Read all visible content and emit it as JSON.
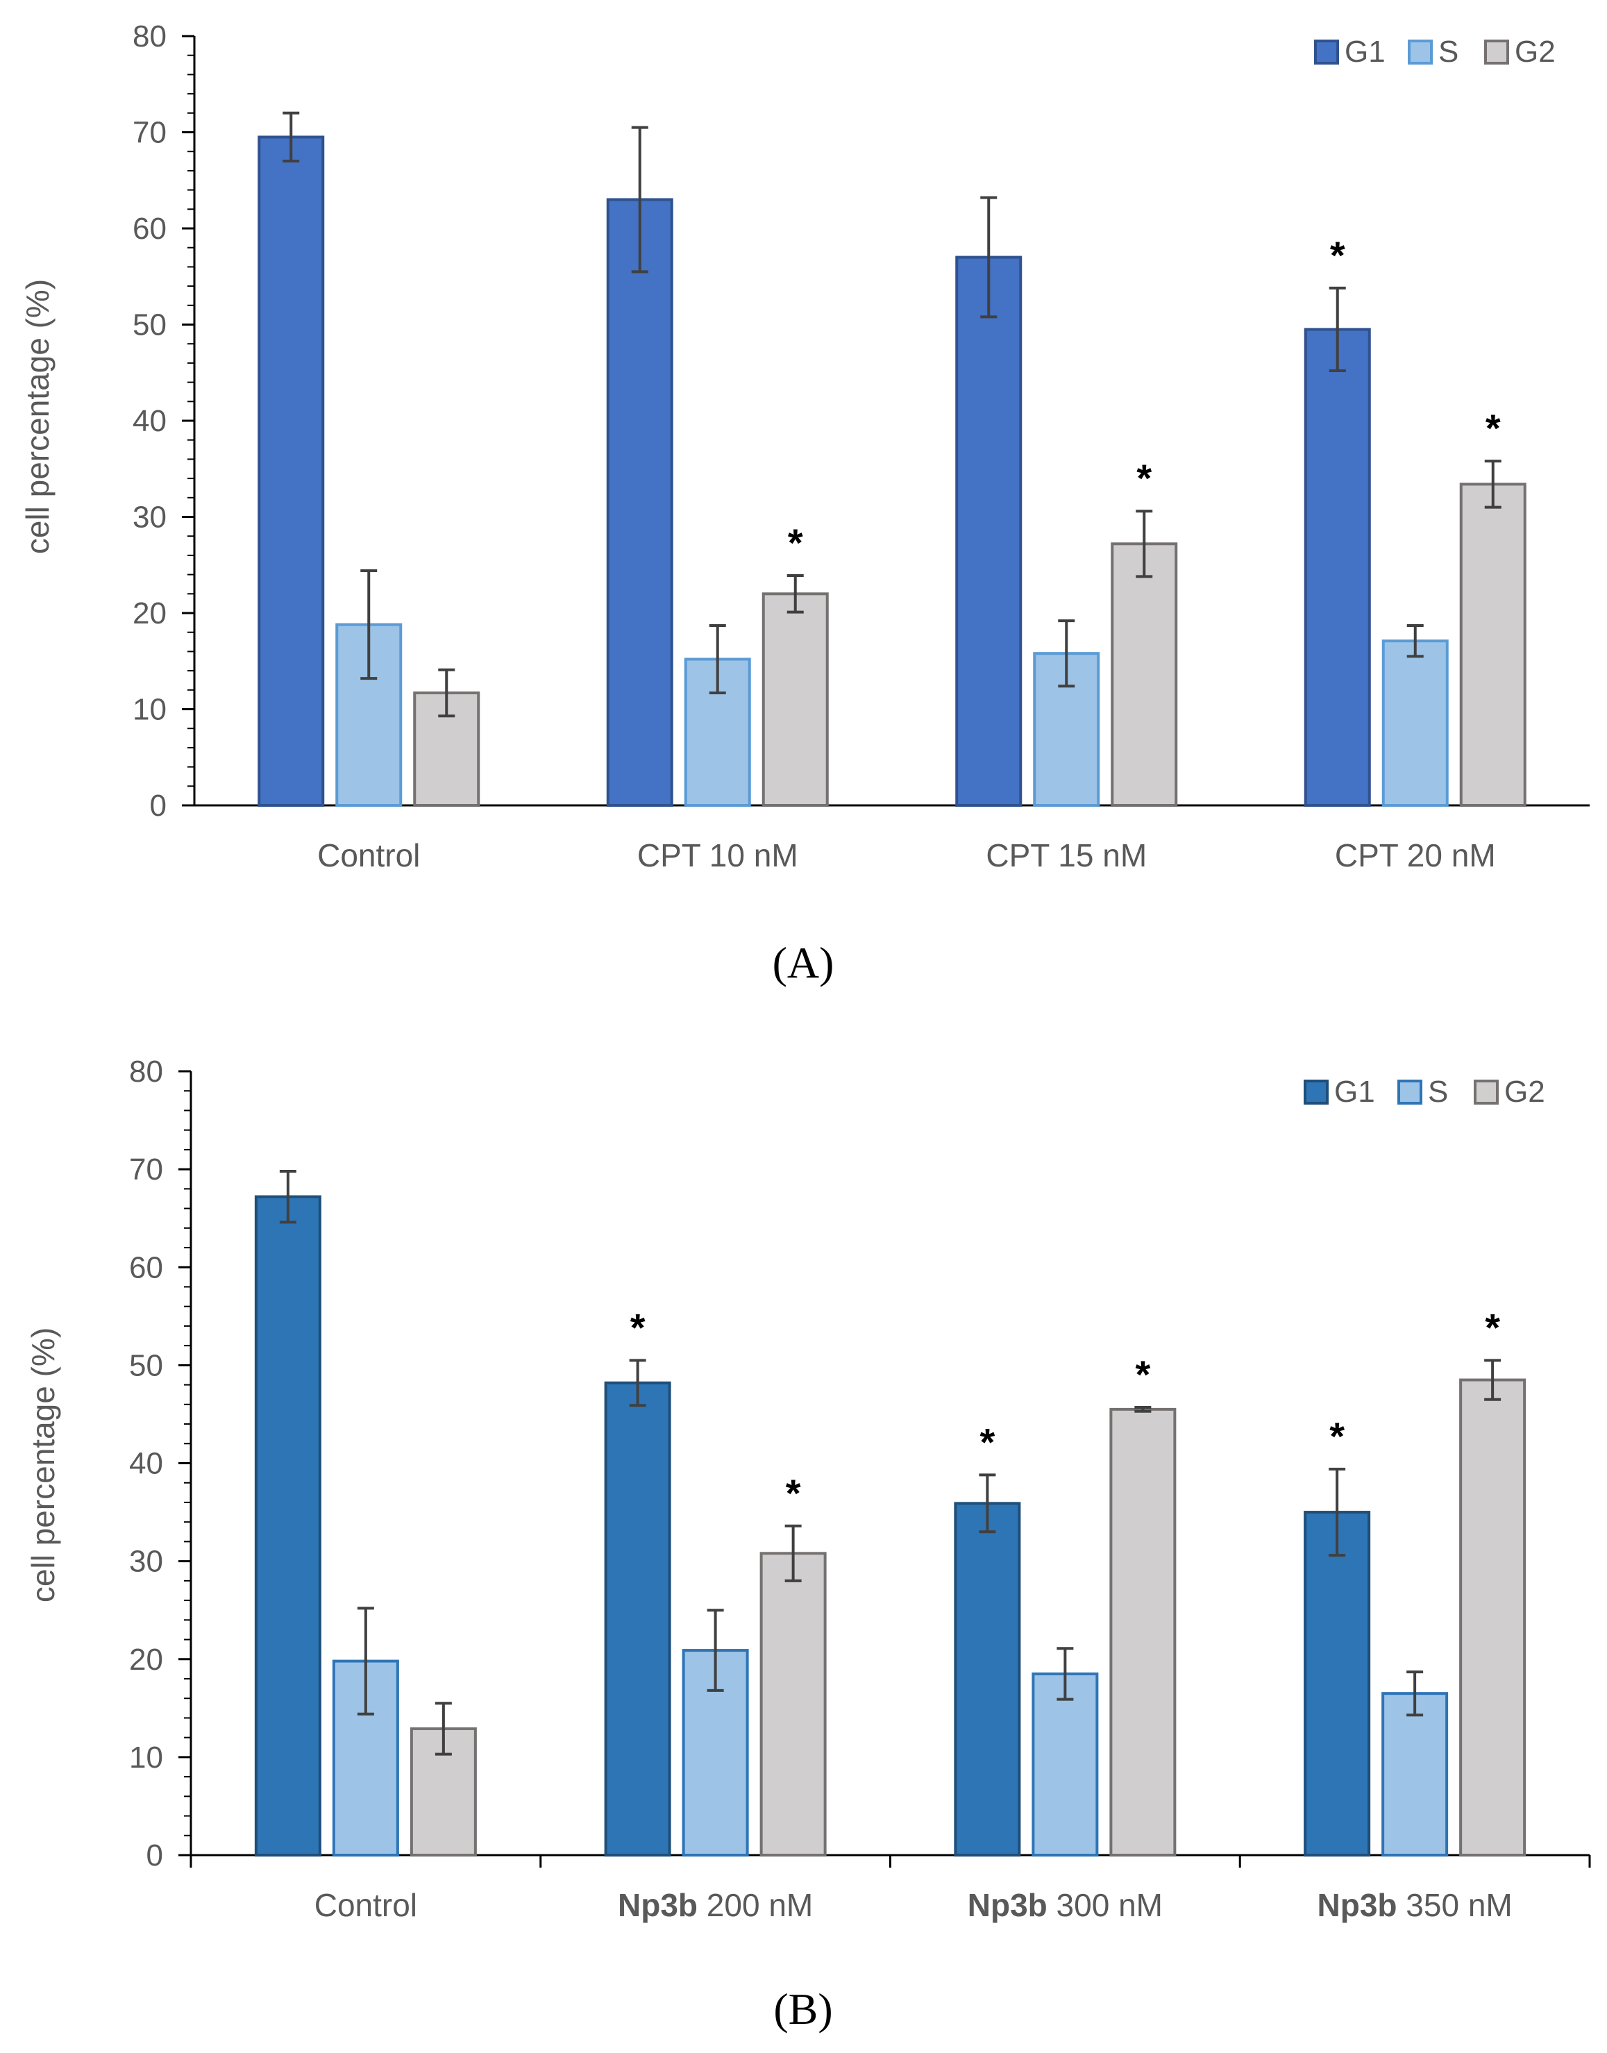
{
  "colors": {
    "axis": "#000000",
    "tick_text": "#595959",
    "error_bar": "#404040",
    "star": "#000000"
  },
  "chart_data": [
    {
      "type": "bar",
      "panel_label": "(A)",
      "ylabel": "cell percentage (%)",
      "ylim": [
        0,
        80
      ],
      "yticks": [
        "0",
        "10",
        "20",
        "30",
        "40",
        "50",
        "60",
        "70",
        "80"
      ],
      "categories": [
        {
          "prefix": "",
          "label": "Control"
        },
        {
          "prefix": "",
          "label": "CPT 10 nM"
        },
        {
          "prefix": "",
          "label": "CPT 15 nM"
        },
        {
          "prefix": "",
          "label": "CPT 20 nM"
        }
      ],
      "legend_position": "top-right",
      "series": [
        {
          "name": "G1",
          "fill": "#4472C4",
          "stroke": "#2F528F",
          "values": [
            69.5,
            63.0,
            57.0,
            49.5
          ],
          "errors": [
            2.5,
            7.5,
            6.2,
            4.3
          ],
          "significant": [
            false,
            false,
            false,
            true
          ]
        },
        {
          "name": "S",
          "fill": "#9DC3E6",
          "stroke": "#5B9BD5",
          "values": [
            18.8,
            15.2,
            15.8,
            17.1
          ],
          "errors": [
            5.6,
            3.5,
            3.4,
            1.6
          ],
          "significant": [
            false,
            false,
            false,
            false
          ]
        },
        {
          "name": "G2",
          "fill": "#D0CECE",
          "stroke": "#767171",
          "values": [
            11.7,
            22.0,
            27.2,
            33.4
          ],
          "errors": [
            2.4,
            1.9,
            3.4,
            2.4
          ],
          "significant": [
            false,
            true,
            true,
            true
          ]
        }
      ],
      "significance_marker": "*",
      "grid": false
    },
    {
      "type": "bar",
      "panel_label": "(B)",
      "ylabel": "cell percentage (%)",
      "ylim": [
        0,
        80
      ],
      "yticks": [
        "0",
        "10",
        "20",
        "30",
        "40",
        "50",
        "60",
        "70",
        "80"
      ],
      "categories": [
        {
          "prefix": "",
          "label": "Control"
        },
        {
          "prefix": "Np3b",
          "label": " 200 nM"
        },
        {
          "prefix": "Np3b",
          "label": " 300 nM"
        },
        {
          "prefix": "Np3b",
          "label": " 350 nM"
        }
      ],
      "legend_position": "top-right",
      "series": [
        {
          "name": "G1",
          "fill": "#2E75B6",
          "stroke": "#1F4E79",
          "values": [
            67.2,
            48.2,
            35.9,
            35.0
          ],
          "errors": [
            2.6,
            2.3,
            2.9,
            4.4
          ],
          "significant": [
            false,
            true,
            true,
            true
          ]
        },
        {
          "name": "S",
          "fill": "#9DC3E6",
          "stroke": "#2E75B6",
          "values": [
            19.8,
            20.9,
            18.5,
            16.5
          ],
          "errors": [
            5.4,
            4.1,
            2.6,
            2.2
          ],
          "significant": [
            false,
            false,
            false,
            false
          ]
        },
        {
          "name": "G2",
          "fill": "#D0CECE",
          "stroke": "#767171",
          "values": [
            12.9,
            30.8,
            45.5,
            48.5
          ],
          "errors": [
            2.6,
            2.8,
            0.2,
            2.0
          ],
          "significant": [
            false,
            true,
            true,
            true
          ]
        }
      ],
      "significance_marker": "*",
      "grid": false
    }
  ]
}
